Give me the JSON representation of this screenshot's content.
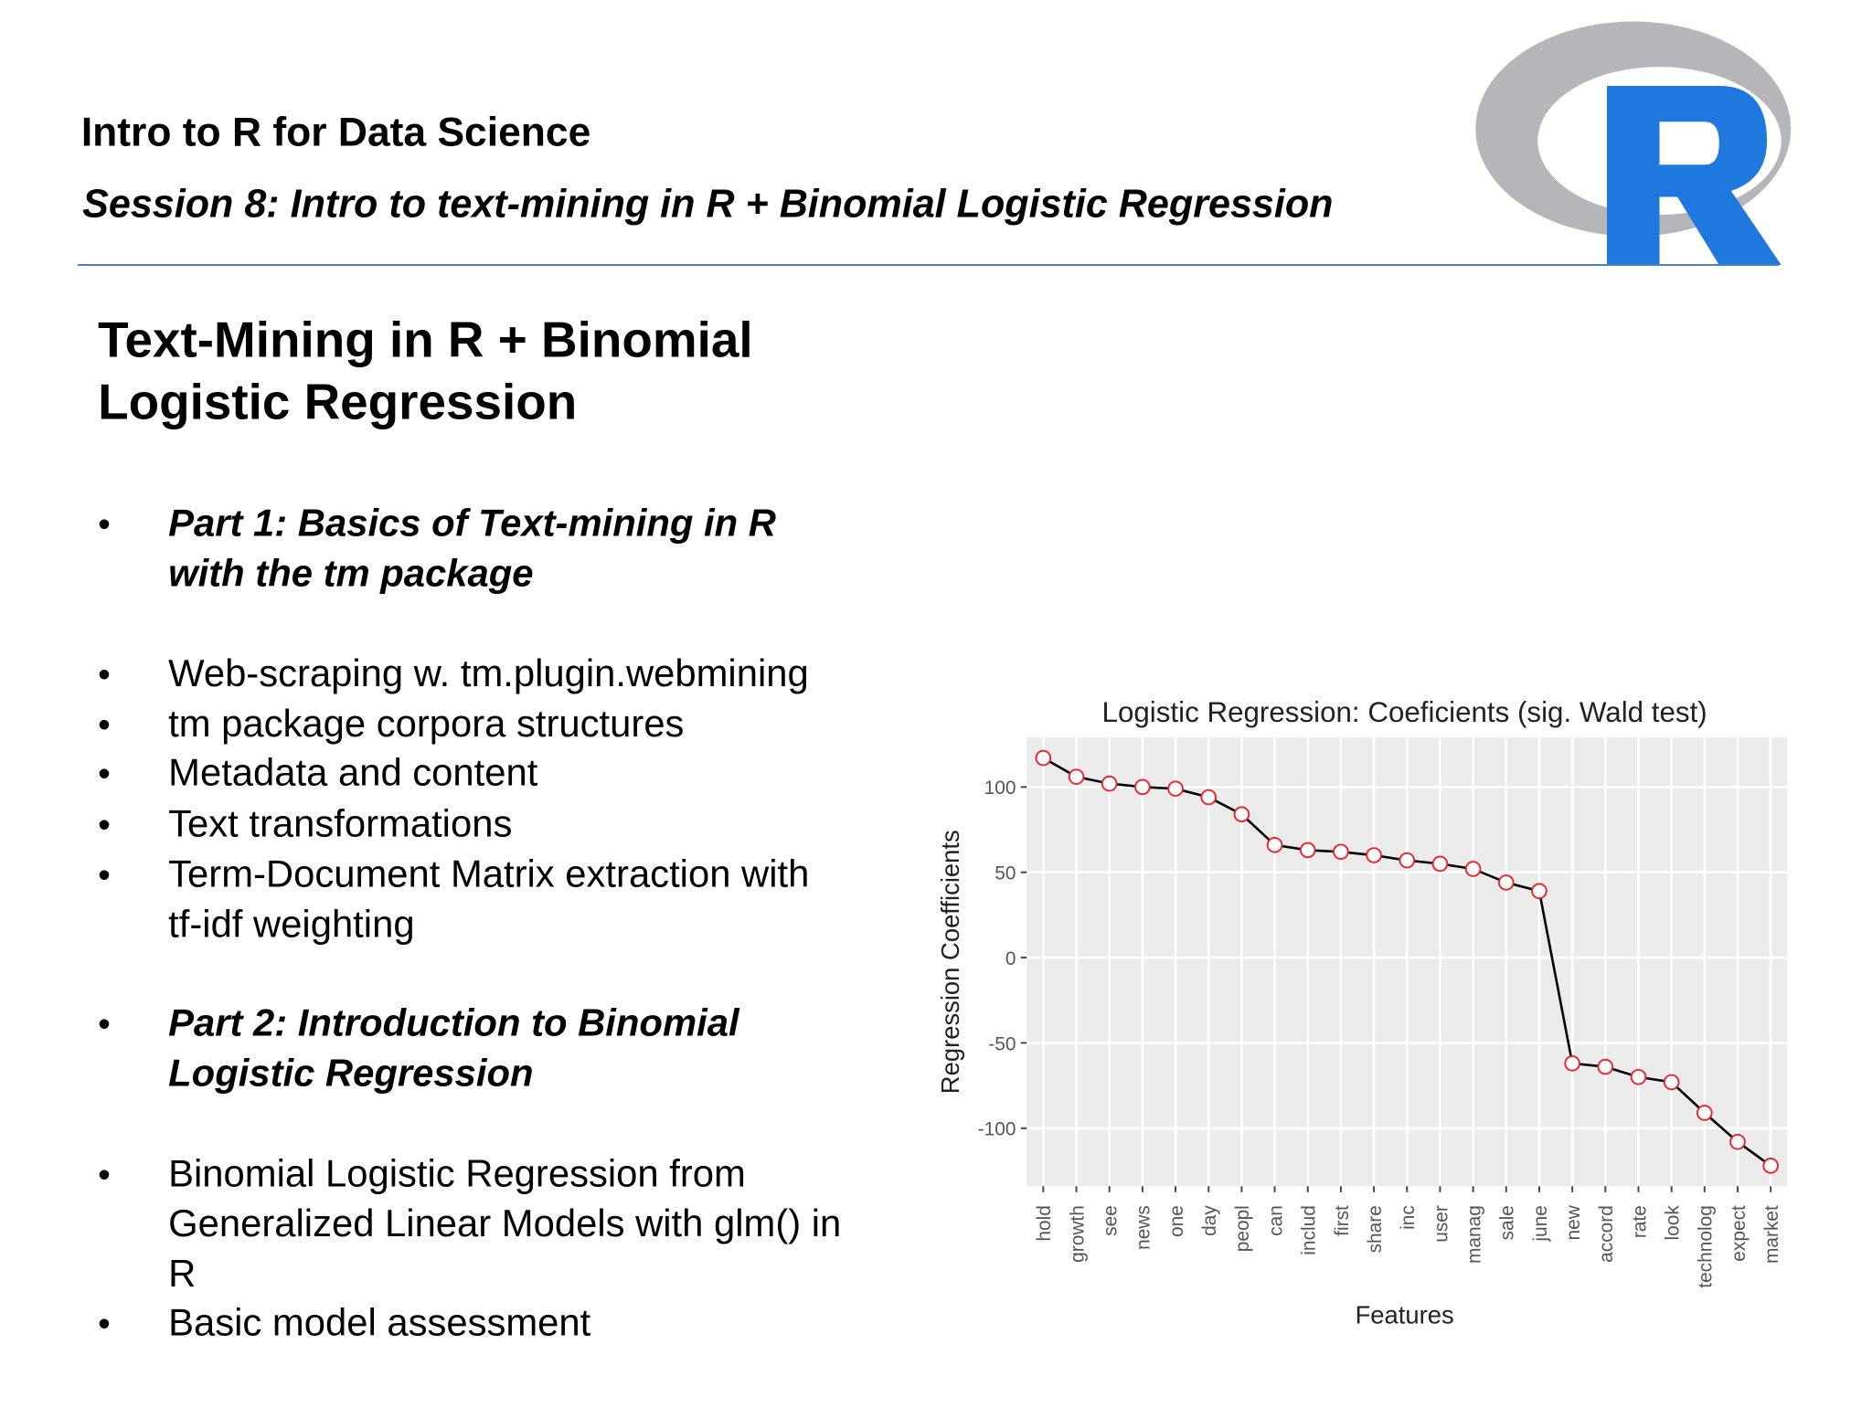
{
  "header": {
    "title": "Intro to R for Data Science",
    "subtitle": "Session 8: Intro to text-mining in R + Binomial Logistic Regression"
  },
  "slide": {
    "title_lines": [
      "Text-Mining in R + Binomial",
      "Logistic Regression"
    ],
    "bullet_symbol": "•",
    "bullets": [
      {
        "lines": [
          "Part 1: Basics of Text-mining in R",
          "with the tm package"
        ],
        "emphasis": true
      },
      {
        "lines": [
          "Web-scraping w. tm.plugin.webmining"
        ],
        "emphasis": false
      },
      {
        "lines": [
          "tm package corpora structures"
        ],
        "emphasis": false
      },
      {
        "lines": [
          "Metadata and content"
        ],
        "emphasis": false
      },
      {
        "lines": [
          "Text transformations"
        ],
        "emphasis": false
      },
      {
        "lines": [
          "Term-Document Matrix extraction with",
          "tf-idf weighting"
        ],
        "emphasis": false
      },
      {
        "lines": [
          "Part 2: Introduction to Binomial",
          "Logistic Regression"
        ],
        "emphasis": true
      },
      {
        "lines": [
          "Binomial Logistic Regression from",
          "Generalized Linear Models with glm() in",
          "R"
        ],
        "emphasis": false
      },
      {
        "lines": [
          "Basic model assessment"
        ],
        "emphasis": false
      }
    ]
  },
  "chart_data": {
    "type": "line",
    "title": "Logistic Regression: Coeficients (sig. Wald test)",
    "x_label": "Features",
    "y_label": "Regression Coefficients",
    "categories": [
      "hold",
      "growth",
      "see",
      "news",
      "one",
      "day",
      "peopl",
      "can",
      "includ",
      "first",
      "share",
      "inc",
      "user",
      "manag",
      "sale",
      "june",
      "new",
      "accord",
      "rate",
      "look",
      "technolog",
      "expect",
      "market"
    ],
    "values": [
      117,
      106,
      102,
      100,
      99,
      94,
      84,
      66,
      63,
      62,
      60,
      57,
      55,
      52,
      44,
      39,
      -62,
      -64,
      -70,
      -73,
      -91,
      -108,
      -122
    ],
    "color": "#000000",
    "marker_color": "#e8282b",
    "ylim": [
      -134,
      129
    ],
    "yticks": [
      -100,
      -50,
      0,
      50,
      100
    ],
    "grid": true
  }
}
